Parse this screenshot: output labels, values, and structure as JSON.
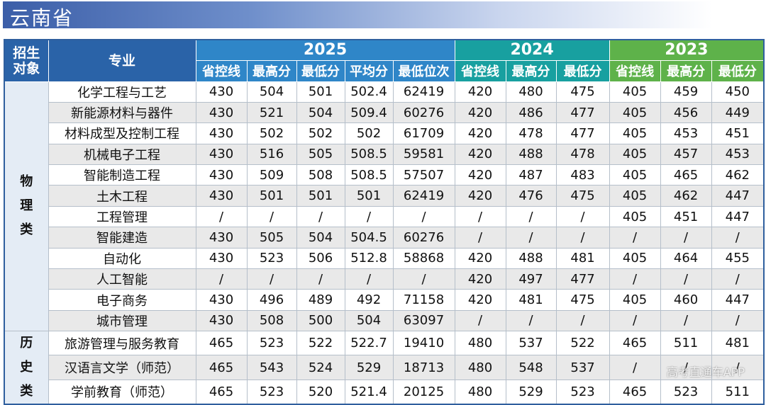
{
  "header": {
    "title": "云南省"
  },
  "table": {
    "col_group": "招生对象",
    "col_major": "专业",
    "years": [
      {
        "year": "2025",
        "subs": [
          "省控线",
          "最高分",
          "最低分",
          "平均分",
          "最低位次"
        ]
      },
      {
        "year": "2024",
        "subs": [
          "省控线",
          "最高分",
          "最低分"
        ]
      },
      {
        "year": "2023",
        "subs": [
          "省控线",
          "最高分",
          "最低分"
        ]
      }
    ],
    "groups": [
      {
        "name": "物理类",
        "rows": [
          [
            "化学工程与工艺",
            430,
            504,
            501,
            502.4,
            62419,
            420,
            480,
            475,
            405,
            459,
            450
          ],
          [
            "新能源材料与器件",
            430,
            521,
            504,
            509.4,
            60276,
            420,
            486,
            477,
            405,
            456,
            449
          ],
          [
            "材料成型及控制工程",
            430,
            502,
            502,
            502,
            61709,
            420,
            478,
            477,
            405,
            453,
            451
          ],
          [
            "机械电子工程",
            430,
            516,
            505,
            508.5,
            59581,
            420,
            488,
            478,
            405,
            457,
            453
          ],
          [
            "智能制造工程",
            430,
            509,
            508,
            508.5,
            57507,
            420,
            487,
            483,
            405,
            465,
            462
          ],
          [
            "土木工程",
            430,
            501,
            501,
            501,
            62419,
            420,
            476,
            475,
            405,
            462,
            447
          ],
          [
            "工程管理",
            "/",
            "/",
            "/",
            "/",
            "/",
            "/",
            "/",
            "/",
            405,
            451,
            447
          ],
          [
            "智能建造",
            430,
            505,
            504,
            504.5,
            60276,
            "/",
            "/",
            "/",
            "/",
            "/",
            "/"
          ],
          [
            "自动化",
            430,
            523,
            506,
            512.8,
            58868,
            420,
            488,
            481,
            405,
            464,
            455
          ],
          [
            "人工智能",
            "/",
            "/",
            "/",
            "/",
            "/",
            420,
            497,
            477,
            "/",
            "/",
            "/"
          ],
          [
            "电子商务",
            430,
            496,
            489,
            492,
            71158,
            420,
            481,
            475,
            405,
            460,
            447
          ],
          [
            "城市管理",
            430,
            508,
            500,
            504,
            63097,
            "/",
            "/",
            "/",
            "/",
            "/",
            "/"
          ]
        ]
      },
      {
        "name": "历史类",
        "rows": [
          [
            "旅游管理与服务教育",
            465,
            523,
            522,
            522.7,
            19410,
            480,
            537,
            522,
            465,
            511,
            481
          ],
          [
            "汉语言文学（师范）",
            465,
            543,
            524,
            529,
            18713,
            480,
            548,
            537,
            "/",
            "/",
            "/"
          ],
          [
            "学前教育（师范）",
            465,
            523,
            520,
            521.4,
            20125,
            480,
            529,
            523,
            465,
            523,
            511
          ]
        ]
      }
    ]
  },
  "watermark": "高考直通车APP"
}
